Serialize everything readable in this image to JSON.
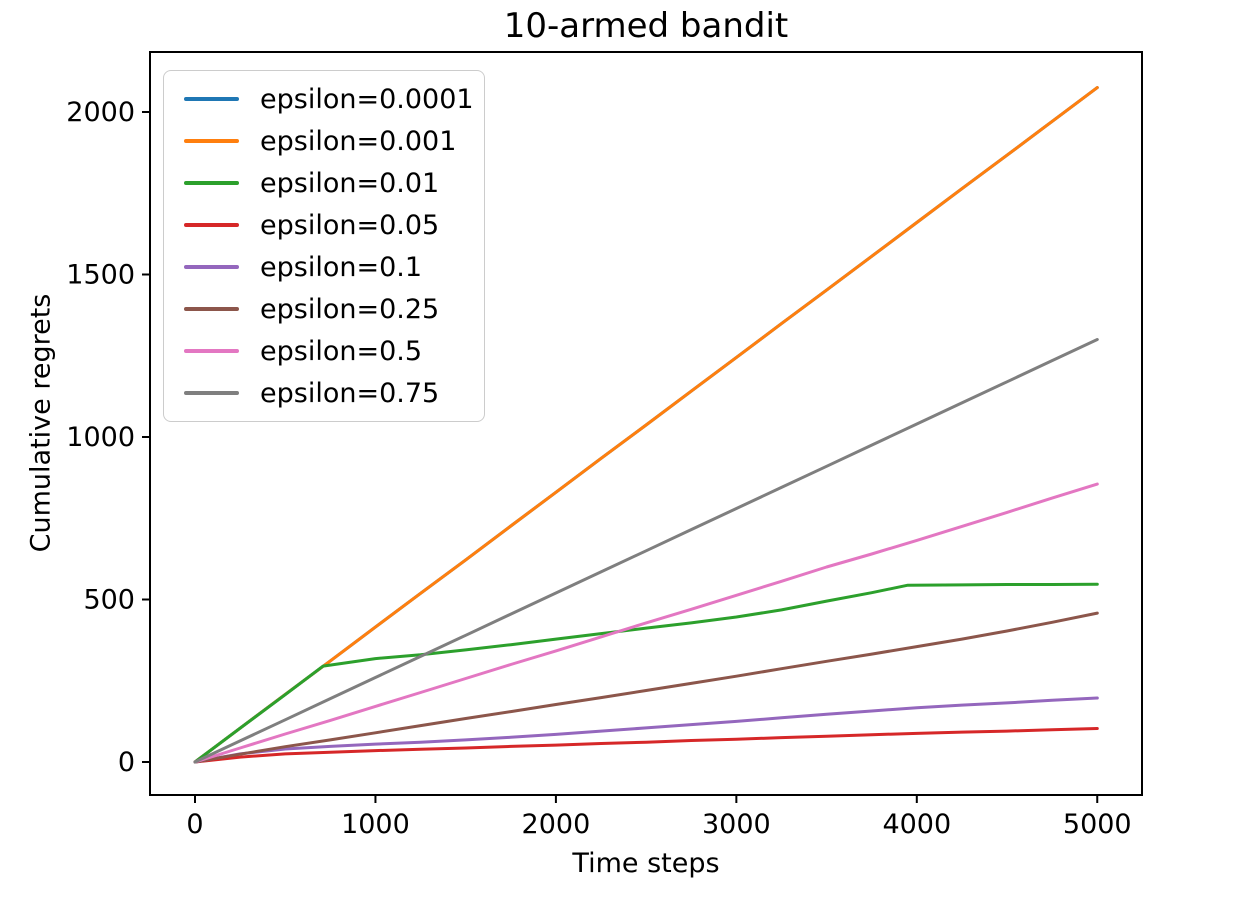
{
  "figure": {
    "kind": "matplotlib-line-plot",
    "background": "#ffffff",
    "spine_color": "#000000"
  },
  "chart_data": {
    "type": "line",
    "title": "10-armed bandit",
    "xlabel": "Time steps",
    "ylabel": "Cumulative regrets",
    "xlim": [
      -249,
      5246
    ],
    "ylim": [
      -101,
      2184
    ],
    "xticks": [
      0,
      1000,
      2000,
      3000,
      4000,
      5000
    ],
    "yticks": [
      0,
      500,
      1000,
      1500,
      2000
    ],
    "grid": false,
    "legend_position": "upper left",
    "x": [
      0,
      250,
      500,
      750,
      1000,
      1250,
      1500,
      1750,
      2000,
      2250,
      2500,
      2750,
      3000,
      3250,
      3500,
      3750,
      4000,
      4250,
      4500,
      4750,
      5000
    ],
    "series": [
      {
        "label": "epsilon=0.0001",
        "color": "#1f77b4",
        "y": [
          0,
          104,
          208,
          311,
          415,
          519,
          622,
          726,
          830,
          934,
          1037,
          1141,
          1245,
          1349,
          1452,
          1556,
          1660,
          1764,
          1867,
          1971,
          2075
        ]
      },
      {
        "label": "epsilon=0.001",
        "color": "#ff7f0e",
        "y": [
          0,
          104,
          208,
          311,
          415,
          519,
          622,
          726,
          830,
          934,
          1037,
          1141,
          1245,
          1349,
          1452,
          1556,
          1660,
          1764,
          1867,
          1971,
          2075
        ]
      },
      {
        "label": "epsilon=0.01",
        "color": "#2ca02c",
        "x": [
          0,
          250,
          500,
          710,
          1000,
          1250,
          1500,
          1750,
          2000,
          2250,
          2500,
          2750,
          3000,
          3250,
          3500,
          3750,
          3950,
          4250,
          4500,
          4750,
          5000
        ],
        "y": [
          0,
          104,
          207,
          295,
          318,
          330,
          345,
          361,
          378,
          395,
          412,
          428,
          446,
          468,
          495,
          521,
          544,
          545,
          546,
          546,
          547
        ]
      },
      {
        "label": "epsilon=0.05",
        "color": "#d62728",
        "y": [
          0,
          15,
          25,
          30,
          35,
          39,
          43,
          48,
          52,
          57,
          61,
          66,
          70,
          75,
          79,
          84,
          88,
          92,
          95,
          99,
          103
        ]
      },
      {
        "label": "epsilon=0.1",
        "color": "#9467bd",
        "y": [
          0,
          25,
          40,
          48,
          55,
          61,
          68,
          76,
          85,
          95,
          105,
          115,
          125,
          136,
          147,
          157,
          167,
          175,
          182,
          190,
          197
        ]
      },
      {
        "label": "epsilon=0.25",
        "color": "#8c564b",
        "y": [
          0,
          24,
          47,
          68,
          90,
          112,
          134,
          155,
          177,
          198,
          220,
          242,
          264,
          287,
          310,
          332,
          355,
          378,
          403,
          430,
          458
        ]
      },
      {
        "label": "epsilon=0.5",
        "color": "#e377c2",
        "y": [
          0,
          43,
          86,
          128,
          171,
          214,
          257,
          300,
          342,
          385,
          428,
          470,
          513,
          556,
          600,
          640,
          682,
          725,
          768,
          812,
          855
        ]
      },
      {
        "label": "epsilon=0.75",
        "color": "#7f7f7f",
        "y": [
          0,
          65,
          130,
          195,
          260,
          325,
          390,
          455,
          520,
          585,
          650,
          715,
          780,
          845,
          910,
          975,
          1040,
          1105,
          1170,
          1235,
          1300
        ]
      }
    ]
  }
}
